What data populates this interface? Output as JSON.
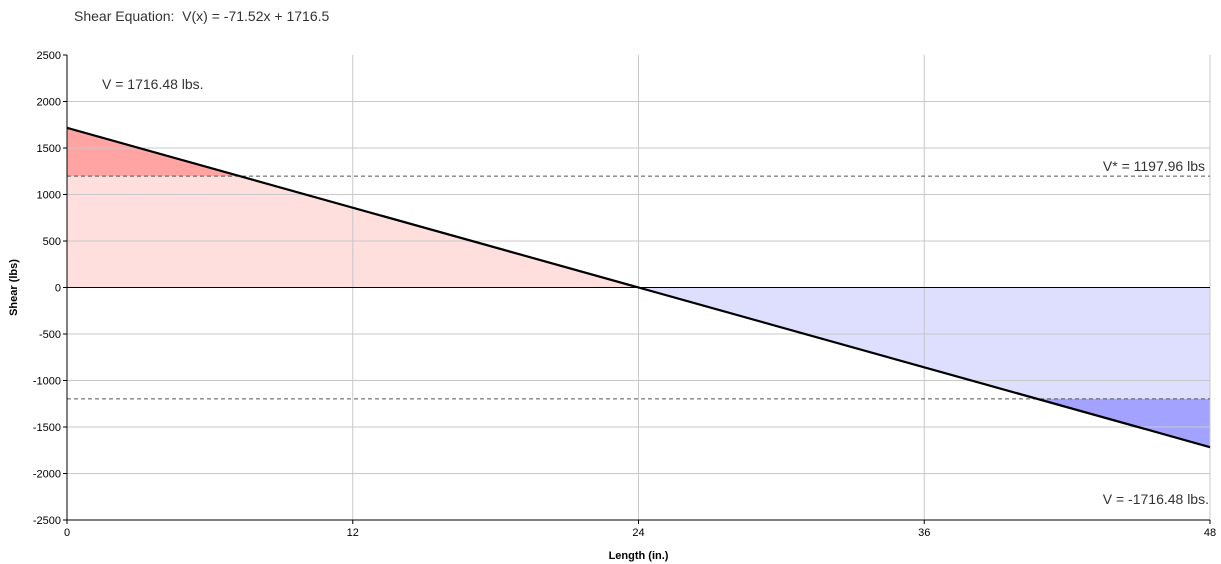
{
  "header": {
    "equation_label": "Shear Equation:  V(x) = -71.52x + 1716.5"
  },
  "chart_data": {
    "type": "area",
    "title": "",
    "xlabel": "Length (in.)",
    "ylabel": "Shear (lbs)",
    "xlim": [
      0,
      48
    ],
    "ylim": [
      -2500,
      2500
    ],
    "x_ticks": [
      0,
      12,
      24,
      36,
      48
    ],
    "y_ticks": [
      2500,
      2000,
      1500,
      1000,
      500,
      0,
      -500,
      -1000,
      -1500,
      -2000,
      -2500
    ],
    "grid": true,
    "series": [
      {
        "name": "",
        "x": [
          0,
          48
        ],
        "y": [
          1716.48,
          -1716.48
        ]
      }
    ],
    "reference_lines": [
      {
        "y": 1197.96,
        "style": "dashed"
      },
      {
        "y": -1197.96,
        "style": "dashed"
      }
    ],
    "annotations": {
      "v_max": "V = 1716.48 lbs.",
      "v_star": "V* = 1197.96 lbs",
      "v_min": "V = -1716.48 lbs."
    },
    "colors": {
      "positive_fill": "#ffdede",
      "negative_fill": "#dedeff",
      "positive_excess": "#ffa3a3",
      "negative_excess": "#a3a3ff",
      "line": "#000000",
      "grid": "#c8c8c8"
    }
  }
}
